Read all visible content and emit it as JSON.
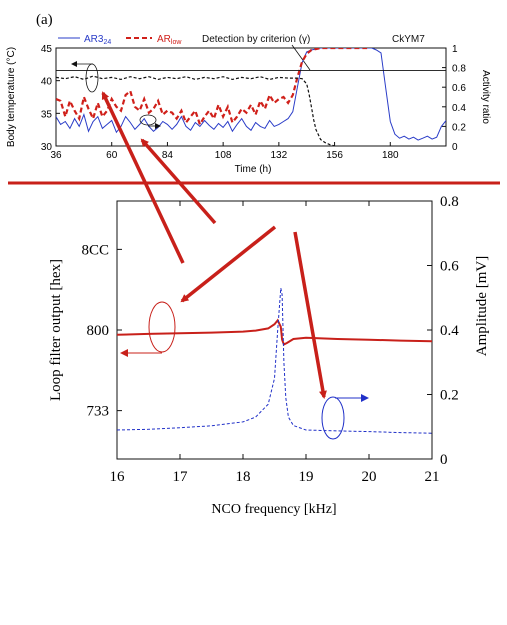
{
  "chart_data": [
    {
      "panel_label": "(a)",
      "type": "line",
      "xlabel": "Time (h)",
      "ylabel": "Body temperature (°C)",
      "y2label": "Activity ratio",
      "xlim": [
        36,
        204
      ],
      "ylim": [
        30,
        45
      ],
      "y2lim": [
        0,
        1
      ],
      "xticks": [
        "36",
        "60",
        "84",
        "108",
        "132",
        "156",
        "180"
      ],
      "yticks": [
        "30",
        "35",
        "40",
        "45"
      ],
      "y2ticks": [
        "0",
        "0.2",
        "0.4",
        "0.6",
        "0.8",
        "1"
      ],
      "legend": [
        {
          "text": "AR3",
          "sub": "24",
          "color": "#2a3cc8"
        },
        {
          "text": "AR",
          "sub": "low",
          "color": "#d0201a"
        }
      ],
      "annotation": "Detection by criterion (γ)",
      "id_label": "CkYM7",
      "threshold_ratio": 0.77,
      "series": [
        {
          "name": "AR3",
          "color": "#2a3cc8",
          "axis": "y2",
          "x": [
            36,
            38,
            40,
            42,
            44,
            46,
            48,
            50,
            52,
            54,
            56,
            58,
            60,
            62,
            64,
            66,
            68,
            70,
            72,
            74,
            76,
            78,
            80,
            82,
            84,
            86,
            88,
            90,
            92,
            94,
            96,
            98,
            100,
            102,
            104,
            106,
            108,
            110,
            112,
            114,
            116,
            118,
            120,
            122,
            124,
            126,
            128,
            130,
            132,
            134,
            136,
            138,
            140,
            142,
            144,
            146,
            148,
            150,
            152,
            156,
            160,
            164,
            168,
            170,
            172,
            174,
            176,
            178,
            180,
            182,
            184,
            186,
            188,
            190,
            192,
            194,
            196,
            198,
            200,
            202,
            204
          ],
          "y": [
            0.3,
            0.22,
            0.25,
            0.18,
            0.28,
            0.2,
            0.32,
            0.15,
            0.25,
            0.3,
            0.18,
            0.22,
            0.26,
            0.14,
            0.2,
            0.3,
            0.24,
            0.17,
            0.22,
            0.28,
            0.2,
            0.15,
            0.19,
            0.25,
            0.22,
            0.17,
            0.22,
            0.3,
            0.2,
            0.16,
            0.24,
            0.2,
            0.26,
            0.21,
            0.17,
            0.23,
            0.19,
            0.25,
            0.15,
            0.22,
            0.28,
            0.2,
            0.16,
            0.24,
            0.2,
            0.18,
            0.26,
            0.2,
            0.22,
            0.25,
            0.28,
            0.35,
            0.6,
            0.85,
            0.96,
            0.98,
            0.99,
            1,
            1,
            1,
            1,
            1,
            1,
            1,
            1,
            0.98,
            0.95,
            0.6,
            0.25,
            0.12,
            0.08,
            0.1,
            0.07,
            0.09,
            0.06,
            0.08,
            0.1,
            0.07,
            0.09,
            0.2,
            0.26
          ]
        },
        {
          "name": "AR",
          "color": "#d0201a",
          "axis": "y2",
          "x": [
            36,
            38,
            40,
            42,
            44,
            46,
            48,
            50,
            52,
            54,
            56,
            58,
            60,
            62,
            64,
            66,
            68,
            70,
            72,
            74,
            76,
            78,
            80,
            82,
            84,
            86,
            88,
            90,
            92,
            94,
            96,
            98,
            100,
            102,
            104,
            106,
            108,
            110,
            112,
            114,
            116,
            118,
            120,
            122,
            124,
            126,
            128,
            130,
            132,
            134,
            136,
            138,
            140,
            142,
            144,
            146,
            148,
            150,
            152,
            156,
            160,
            164,
            168,
            170
          ],
          "y": [
            0.48,
            0.46,
            0.3,
            0.46,
            0.36,
            0.28,
            0.5,
            0.38,
            0.28,
            0.44,
            0.3,
            0.36,
            0.48,
            0.4,
            0.36,
            0.52,
            0.56,
            0.4,
            0.36,
            0.48,
            0.34,
            0.38,
            0.46,
            0.32,
            0.36,
            0.34,
            0.28,
            0.36,
            0.24,
            0.3,
            0.36,
            0.22,
            0.3,
            0.36,
            0.28,
            0.42,
            0.3,
            0.4,
            0.24,
            0.3,
            0.38,
            0.34,
            0.42,
            0.32,
            0.46,
            0.38,
            0.52,
            0.44,
            0.48,
            0.5,
            0.44,
            0.52,
            0.7,
            0.86,
            0.94,
            0.98,
            0.99,
            1,
            1,
            1,
            1,
            1,
            1,
            1
          ]
        },
        {
          "name": "Body temperature",
          "color": "#111111",
          "axis": "y",
          "x": [
            36,
            40,
            44,
            48,
            52,
            56,
            60,
            64,
            68,
            72,
            76,
            80,
            84,
            88,
            92,
            96,
            100,
            104,
            108,
            112,
            116,
            120,
            124,
            128,
            132,
            136,
            140,
            142,
            144,
            145,
            146,
            147,
            148,
            150,
            152,
            154,
            156
          ],
          "y": [
            40.5,
            40.3,
            40.6,
            40.2,
            40.7,
            40.3,
            40.5,
            40.2,
            40.6,
            40.3,
            40.6,
            40.2,
            40.5,
            40.3,
            40.6,
            40.2,
            40.5,
            40.3,
            40.6,
            40.2,
            40.5,
            40.3,
            40.6,
            40.2,
            40.5,
            40.4,
            40.4,
            40.3,
            39.5,
            38,
            36,
            34,
            32.5,
            31,
            30.5,
            30.2,
            30
          ]
        }
      ]
    },
    {
      "type": "line",
      "xlabel": "NCO frequency [kHz]",
      "ylabel": "Loop filter output [hex]",
      "y2label": "Amplitude [mV]",
      "xlim": [
        16,
        21
      ],
      "y2lim": [
        0,
        0.8
      ],
      "xticks": [
        "16",
        "17",
        "18",
        "19",
        "20",
        "21"
      ],
      "yticks": [
        "733",
        "800",
        "8CC"
      ],
      "y2ticks": [
        "0",
        "0.2",
        "0.4",
        "0.6",
        "0.8"
      ],
      "series": [
        {
          "name": "Loop filter output",
          "color": "#c8201a",
          "axis": "y2",
          "x": [
            16,
            16.5,
            17,
            17.5,
            18,
            18.2,
            18.4,
            18.5,
            18.55,
            18.6,
            18.62,
            18.65,
            18.7,
            18.8,
            19,
            19.5,
            20,
            20.5,
            21
          ],
          "y": [
            0.385,
            0.388,
            0.39,
            0.392,
            0.395,
            0.398,
            0.405,
            0.418,
            0.43,
            0.41,
            0.37,
            0.355,
            0.36,
            0.372,
            0.376,
            0.372,
            0.37,
            0.367,
            0.365
          ]
        },
        {
          "name": "Amplitude",
          "color": "#2030c8",
          "axis": "y2",
          "x": [
            16,
            16.5,
            17,
            17.5,
            18,
            18.2,
            18.4,
            18.5,
            18.55,
            18.6,
            18.62,
            18.65,
            18.68,
            18.72,
            18.8,
            19,
            19.5,
            20,
            20.5,
            21
          ],
          "y": [
            0.09,
            0.092,
            0.097,
            0.103,
            0.115,
            0.13,
            0.17,
            0.25,
            0.4,
            0.53,
            0.51,
            0.3,
            0.19,
            0.13,
            0.104,
            0.09,
            0.087,
            0.085,
            0.082,
            0.08
          ]
        }
      ]
    }
  ]
}
